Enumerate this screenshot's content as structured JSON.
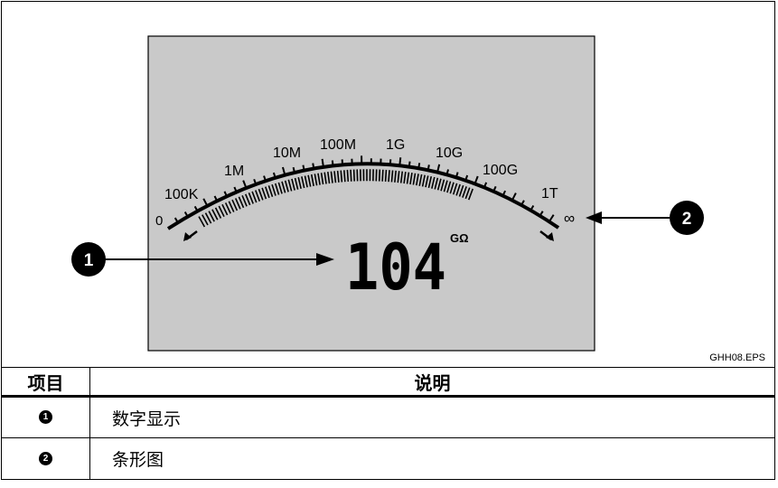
{
  "figure": {
    "file_label": "GHH08.EPS",
    "reading_value": "104",
    "reading_unit": "GΩ",
    "scale_labels": [
      "0",
      "100K",
      "1M",
      "10M",
      "100M",
      "1G",
      "10G",
      "100G",
      "1T",
      "∞"
    ],
    "callouts": [
      {
        "number": "1"
      },
      {
        "number": "2"
      }
    ],
    "colors": {
      "lcd_background": "#c9c9c9",
      "ink": "#000000"
    }
  },
  "table": {
    "headers": [
      "项目",
      "说明"
    ],
    "rows": [
      {
        "item": "1",
        "description": "数字显示"
      },
      {
        "item": "2",
        "description": "条形图"
      }
    ]
  }
}
